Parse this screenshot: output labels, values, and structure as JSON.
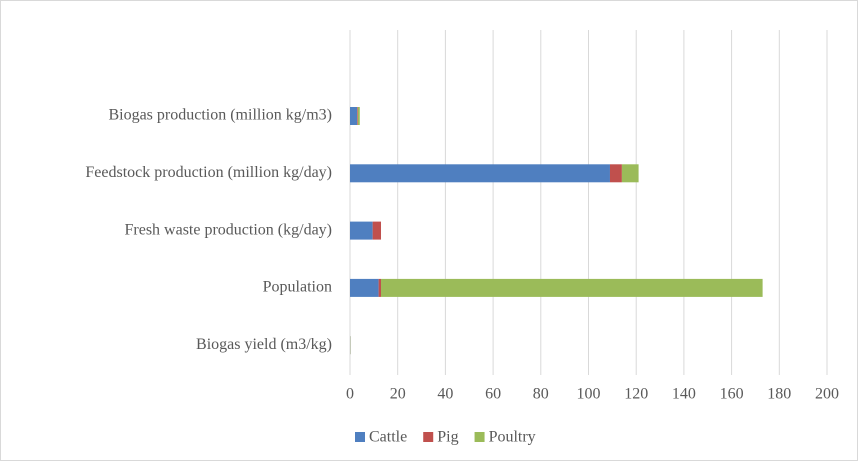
{
  "chart_data": {
    "type": "stacked-bar-horizontal",
    "categories": [
      "Biogas production (million kg/m3)",
      "Feedstock production (million kg/day)",
      "Fresh waste production (kg/day)",
      "Population",
      "Biogas yield (m3/kg)"
    ],
    "series": [
      {
        "name": "Cattle",
        "color": "#4f7fc0",
        "values": [
          3,
          109,
          9.5,
          12,
          0.1
        ]
      },
      {
        "name": "Pig",
        "color": "#c0504d",
        "values": [
          0.3,
          5,
          3.5,
          1,
          0.05
        ]
      },
      {
        "name": "Poultry",
        "color": "#9bbb59",
        "values": [
          0.8,
          7,
          0,
          160,
          0.1
        ]
      }
    ],
    "xlim": [
      0,
      200
    ],
    "xticks": [
      0,
      20,
      40,
      60,
      80,
      100,
      120,
      140,
      160,
      180,
      200
    ],
    "grid": true,
    "legend": "bottom"
  }
}
